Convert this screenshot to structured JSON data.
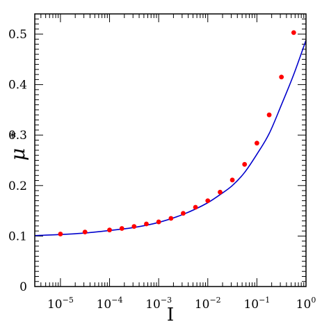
{
  "chart_data": {
    "type": "scatter",
    "xlabel": "I",
    "ylabel": "μ",
    "ylabel_superscript": "*",
    "x_scale": "log",
    "xlim": [
      3e-06,
      1
    ],
    "ylim": [
      0,
      0.54
    ],
    "x_ticks": [
      {
        "value": 1e-05,
        "base": "10",
        "exp": "−5"
      },
      {
        "value": 0.0001,
        "base": "10",
        "exp": "−4"
      },
      {
        "value": 0.001,
        "base": "10",
        "exp": "−3"
      },
      {
        "value": 0.01,
        "base": "10",
        "exp": "−2"
      },
      {
        "value": 0.1,
        "base": "10",
        "exp": "−1"
      },
      {
        "value": 1,
        "base": "10",
        "exp": "0"
      }
    ],
    "y_ticks": [
      {
        "value": 0,
        "label": "0"
      },
      {
        "value": 0.1,
        "label": "0.1"
      },
      {
        "value": 0.2,
        "label": "0.2"
      },
      {
        "value": 0.3,
        "label": "0.3"
      },
      {
        "value": 0.4,
        "label": "0.4"
      },
      {
        "value": 0.5,
        "label": "0.5"
      }
    ],
    "grid": false,
    "series": [
      {
        "kind": "points",
        "color": "#ff0000",
        "points": [
          {
            "x": 1e-05,
            "y": 0.104
          },
          {
            "x": 3.16e-05,
            "y": 0.108
          },
          {
            "x": 0.0001,
            "y": 0.112
          },
          {
            "x": 0.000178,
            "y": 0.115
          },
          {
            "x": 0.000316,
            "y": 0.119
          },
          {
            "x": 0.000562,
            "y": 0.124
          },
          {
            "x": 0.001,
            "y": 0.128
          },
          {
            "x": 0.00178,
            "y": 0.135
          },
          {
            "x": 0.00316,
            "y": 0.145
          },
          {
            "x": 0.00562,
            "y": 0.157
          },
          {
            "x": 0.01,
            "y": 0.17
          },
          {
            "x": 0.0178,
            "y": 0.187
          },
          {
            "x": 0.0316,
            "y": 0.211
          },
          {
            "x": 0.0562,
            "y": 0.242
          },
          {
            "x": 0.1,
            "y": 0.284
          },
          {
            "x": 0.178,
            "y": 0.34
          },
          {
            "x": 0.316,
            "y": 0.415
          },
          {
            "x": 0.562,
            "y": 0.503
          }
        ]
      },
      {
        "kind": "line",
        "color": "#0000cc",
        "points": [
          {
            "x": 3e-06,
            "y": 0.101
          },
          {
            "x": 1e-05,
            "y": 0.103
          },
          {
            "x": 3.16e-05,
            "y": 0.106
          },
          {
            "x": 0.0001,
            "y": 0.111
          },
          {
            "x": 0.000316,
            "y": 0.117
          },
          {
            "x": 0.001,
            "y": 0.127
          },
          {
            "x": 0.00316,
            "y": 0.143
          },
          {
            "x": 0.01,
            "y": 0.166
          },
          {
            "x": 0.0178,
            "y": 0.182
          },
          {
            "x": 0.0316,
            "y": 0.2
          },
          {
            "x": 0.0562,
            "y": 0.226
          },
          {
            "x": 0.1,
            "y": 0.262
          },
          {
            "x": 0.178,
            "y": 0.303
          },
          {
            "x": 0.316,
            "y": 0.36
          },
          {
            "x": 0.562,
            "y": 0.42
          },
          {
            "x": 1,
            "y": 0.488
          }
        ]
      }
    ]
  }
}
